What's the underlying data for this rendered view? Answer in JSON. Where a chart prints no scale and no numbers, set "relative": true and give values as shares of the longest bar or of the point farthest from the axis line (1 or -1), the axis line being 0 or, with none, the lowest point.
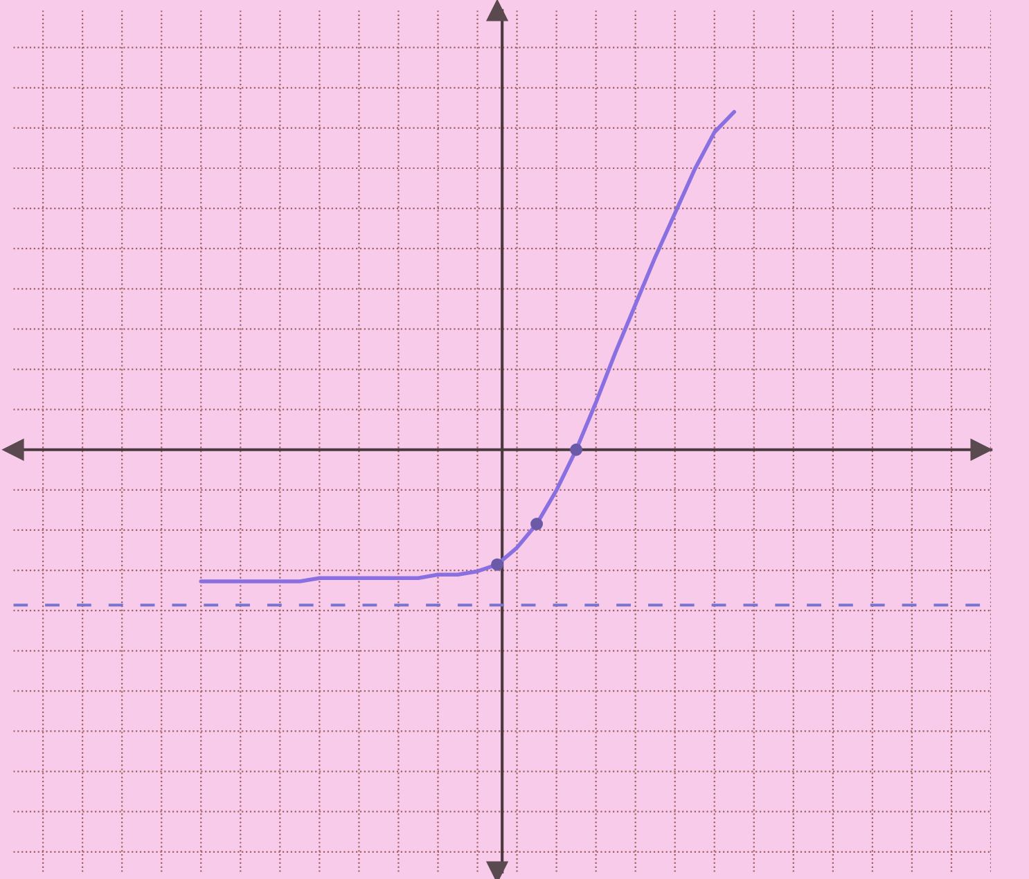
{
  "chart_data": {
    "type": "line",
    "relative": true,
    "grid": true,
    "line_style": "solid",
    "categories": [
      null,
      null,
      null,
      null,
      null,
      null,
      null,
      null,
      null,
      null,
      null,
      null,
      null,
      null,
      null,
      null,
      null,
      null,
      null,
      null,
      null,
      null,
      null,
      null,
      null,
      null,
      null,
      null
    ],
    "series": [
      {
        "color": "#8a6fe0",
        "values": [
          -0.39,
          -0.39,
          -0.39,
          -0.39,
          -0.39,
          -0.39,
          -0.38,
          -0.38,
          -0.38,
          -0.38,
          -0.38,
          -0.38,
          -0.37,
          -0.37,
          -0.36,
          -0.34,
          -0.29,
          -0.22,
          -0.12,
          0,
          0.14,
          0.29,
          0.43,
          0.57,
          0.7,
          0.83,
          0.94,
          1
        ]
      }
    ],
    "ref_lines": [
      {
        "axis": "y",
        "value": -0.46,
        "color": "#7a74d0",
        "line_style": "dashed"
      }
    ]
  }
}
